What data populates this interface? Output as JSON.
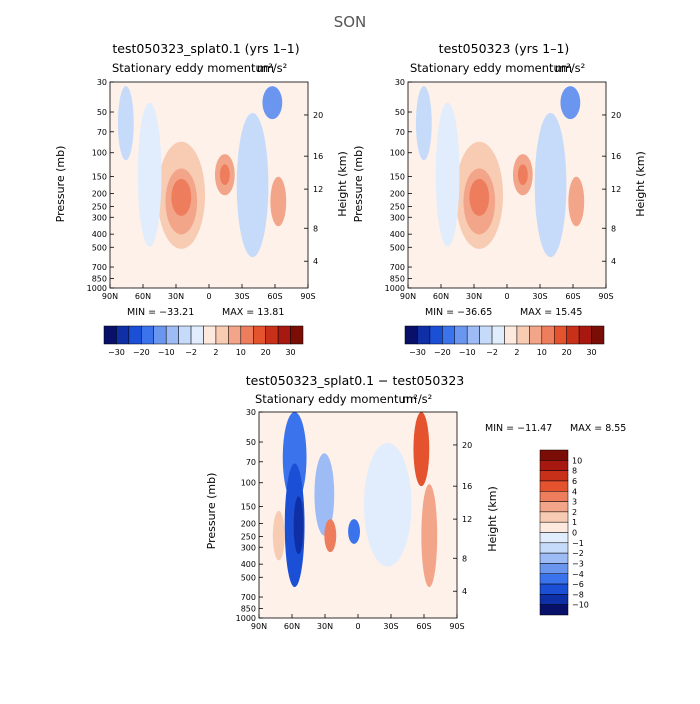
{
  "figure": {
    "season": "SON"
  },
  "chart_data": [
    {
      "type": "heatmap",
      "title": "test050323_splat0.1 (yrs 1–1)",
      "subtitle": "Stationary eddy momentum",
      "units": "m²/s²",
      "xlabel": "",
      "ylabel": "Pressure (mb)",
      "ylabel_right": "Height (km)",
      "x_ticks": [
        "90N",
        "60N",
        "30N",
        "0",
        "30S",
        "60S",
        "90S"
      ],
      "y_ticks": [
        "30",
        "50",
        "70",
        "100",
        "150",
        "200",
        "250",
        "300",
        "400",
        "500",
        "700",
        "850",
        "1000"
      ],
      "y_ticks_right": [
        "20",
        "16",
        "12",
        "8",
        "4"
      ],
      "min_text": "MIN = −33.21",
      "max_text": "MAX =  13.81",
      "colorbar": {
        "orientation": "horizontal",
        "labels": [
          "−30",
          "−20",
          "−10",
          "−2",
          "2",
          "10",
          "20",
          "30"
        ],
        "colors": [
          "#08106a",
          "#0e2fa5",
          "#1a4fd6",
          "#3b73ec",
          "#6a96f0",
          "#9dbcf5",
          "#c6dbfa",
          "#e1edfc",
          "#fde9dd",
          "#f8cbb3",
          "#f3a589",
          "#ee7d5d",
          "#e4532d",
          "#c9301a",
          "#a71910",
          "#7a0d06"
        ]
      }
    },
    {
      "type": "heatmap",
      "title": "test050323 (yrs 1–1)",
      "subtitle": "Stationary eddy momentum",
      "units": "m²/s²",
      "xlabel": "",
      "ylabel": "Pressure (mb)",
      "ylabel_right": "Height (km)",
      "x_ticks": [
        "90N",
        "60N",
        "30N",
        "0",
        "30S",
        "60S",
        "90S"
      ],
      "y_ticks": [
        "30",
        "50",
        "70",
        "100",
        "150",
        "200",
        "250",
        "300",
        "400",
        "500",
        "700",
        "850",
        "1000"
      ],
      "y_ticks_right": [
        "20",
        "16",
        "12",
        "8",
        "4"
      ],
      "min_text": "MIN = −36.65",
      "max_text": "MAX =  15.45",
      "colorbar": {
        "orientation": "horizontal",
        "labels": [
          "−30",
          "−20",
          "−10",
          "−2",
          "2",
          "10",
          "20",
          "30"
        ],
        "colors": [
          "#08106a",
          "#0e2fa5",
          "#1a4fd6",
          "#3b73ec",
          "#6a96f0",
          "#9dbcf5",
          "#c6dbfa",
          "#e1edfc",
          "#fde9dd",
          "#f8cbb3",
          "#f3a589",
          "#ee7d5d",
          "#e4532d",
          "#c9301a",
          "#a71910",
          "#7a0d06"
        ]
      }
    },
    {
      "type": "heatmap",
      "title": "test050323_splat0.1 − test050323",
      "subtitle": "Stationary eddy momentum",
      "units": "m²/s²",
      "xlabel": "",
      "ylabel": "Pressure (mb)",
      "ylabel_right": "Height (km)",
      "x_ticks": [
        "90N",
        "60N",
        "30N",
        "0",
        "30S",
        "60S",
        "90S"
      ],
      "y_ticks": [
        "30",
        "50",
        "70",
        "100",
        "150",
        "200",
        "250",
        "300",
        "400",
        "500",
        "700",
        "850",
        "1000"
      ],
      "y_ticks_right": [
        "20",
        "16",
        "12",
        "8",
        "4"
      ],
      "min_text": "MIN = −11.47",
      "max_text": "MAX =    8.55",
      "colorbar": {
        "orientation": "vertical",
        "labels": [
          "10",
          "8",
          "6",
          "4",
          "3",
          "2",
          "1",
          "0",
          "−1",
          "−2",
          "−3",
          "−4",
          "−6",
          "−8",
          "−10"
        ],
        "colors": [
          "#7a0d06",
          "#a71910",
          "#c9301a",
          "#e4532d",
          "#ee7d5d",
          "#f3a589",
          "#f8cbb3",
          "#fde9dd",
          "#e1edfc",
          "#c6dbfa",
          "#9dbcf5",
          "#6a96f0",
          "#3b73ec",
          "#1a4fd6",
          "#0e2fa5",
          "#08106a"
        ]
      }
    }
  ]
}
